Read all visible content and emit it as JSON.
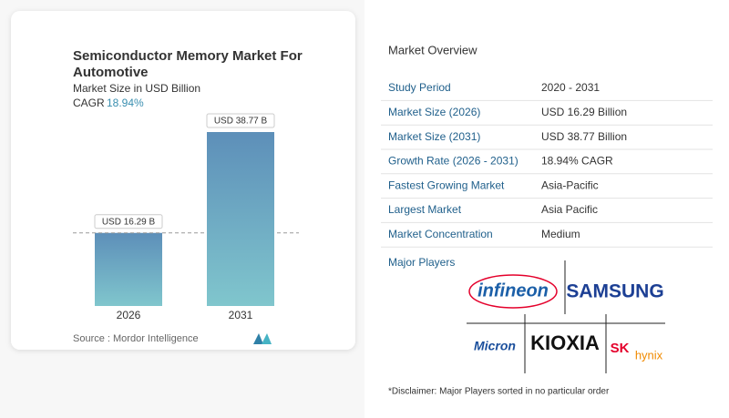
{
  "chart_data": {
    "type": "bar",
    "title": "Semiconductor Memory Market For Automotive",
    "subtitle": "Market Size in USD Billion",
    "cagr_label": "CAGR",
    "cagr": "18.94%",
    "categories": [
      "2026",
      "2031"
    ],
    "values": [
      16.29,
      38.77
    ],
    "value_labels": [
      "USD 16.29 B",
      "USD 38.77 B"
    ],
    "source": "Source : Mordor Intelligence"
  },
  "overview": {
    "title": "Market Overview",
    "rows": [
      [
        "Study Period",
        "2020 - 2031"
      ],
      [
        "Market Size (2026)",
        "USD 16.29 Billion"
      ],
      [
        "Market Size (2031)",
        "USD 38.77 Billion"
      ],
      [
        "Growth Rate (2026 - 2031)",
        "18.94% CAGR"
      ],
      [
        "Fastest Growing Market",
        "Asia-Pacific"
      ],
      [
        "Largest Market",
        "Asia Pacific"
      ],
      [
        "Market Concentration",
        "Medium"
      ]
    ],
    "players_title": "Major Players",
    "players": [
      "infineon",
      "SAMSUNG",
      "Micron",
      "KIOXIA",
      "SK",
      "hynix"
    ],
    "disclaimer": "*Disclaimer: Major Players sorted in no particular order"
  }
}
